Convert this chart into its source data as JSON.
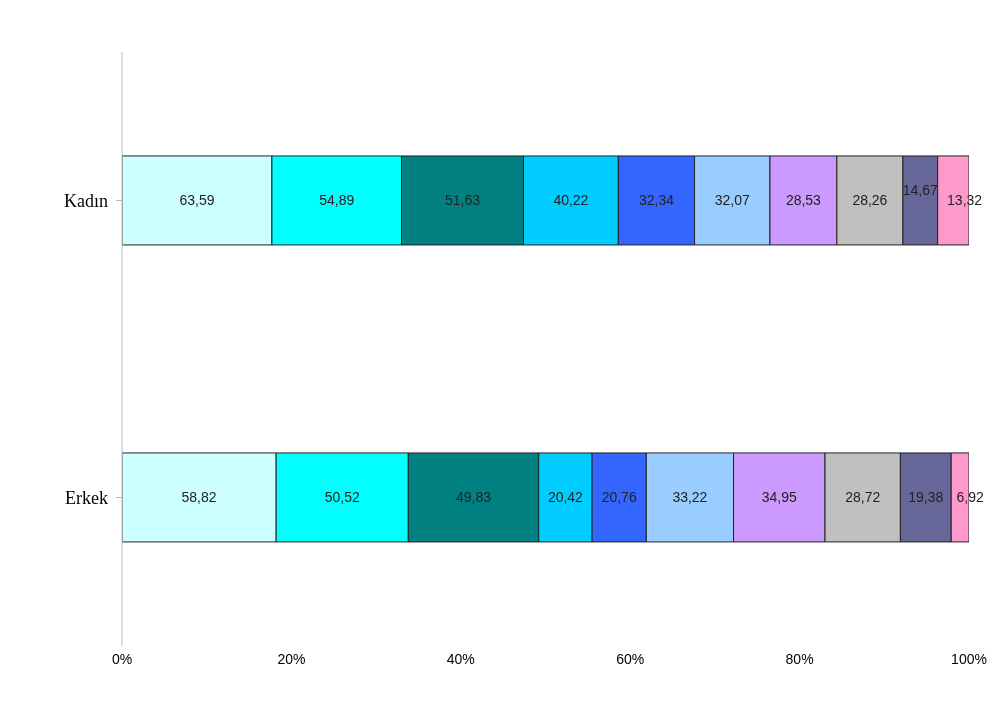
{
  "chart_data": {
    "type": "bar",
    "orientation": "horizontal",
    "stacked": true,
    "categories": [
      "Kadın",
      "Erkek"
    ],
    "xlim": [
      0,
      100
    ],
    "xticks": [
      {
        "value": 0,
        "label": "0%"
      },
      {
        "value": 20,
        "label": "20%"
      },
      {
        "value": 40,
        "label": "40%"
      },
      {
        "value": 60,
        "label": "60%"
      },
      {
        "value": 80,
        "label": "80%"
      },
      {
        "value": 100,
        "label": "100%"
      }
    ],
    "series": [
      {
        "color": "#ccffff",
        "values": [
          17.7,
          18.2
        ]
      },
      {
        "color": "#00ffff",
        "values": [
          15.3,
          15.6
        ]
      },
      {
        "color": "#008080",
        "values": [
          14.4,
          15.4
        ]
      },
      {
        "color": "#00ccff",
        "values": [
          11.2,
          6.3
        ]
      },
      {
        "color": "#3366ff",
        "values": [
          9.0,
          6.4
        ]
      },
      {
        "color": "#99ccff",
        "values": [
          8.9,
          10.3
        ]
      },
      {
        "color": "#cc99ff",
        "values": [
          7.9,
          10.8
        ]
      },
      {
        "color": "#c0c0c0",
        "values": [
          7.8,
          8.9
        ]
      },
      {
        "color": "#666699",
        "values": [
          4.1,
          6.0
        ]
      },
      {
        "color": "#ff99cc",
        "values": [
          3.7,
          2.1
        ]
      }
    ],
    "annotations": [
      "63,59",
      "54,89",
      "51,63",
      "40,22",
      "32,34",
      "32,07",
      "28,53",
      "28,26",
      "14,67",
      "13,32",
      "58,82",
      "50,52",
      "49,83",
      "20,42",
      "20,76",
      "33,22",
      "34,95",
      "28,72",
      "19,38",
      "6,92"
    ],
    "grid": false,
    "legend": false
  }
}
